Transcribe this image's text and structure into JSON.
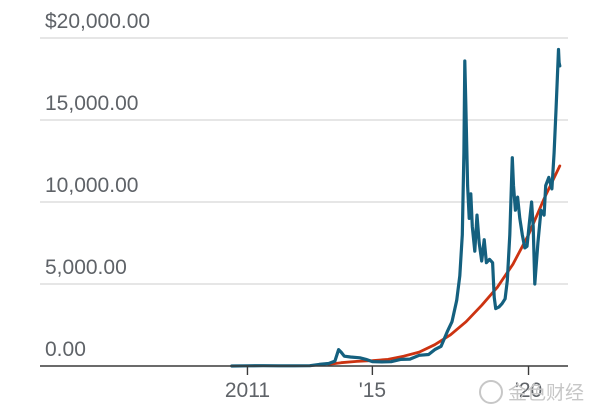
{
  "chart_data": {
    "type": "line",
    "title": "",
    "xlabel": "",
    "ylabel": "",
    "ylim": [
      0,
      20000
    ],
    "xlim": [
      2009,
      2021.2
    ],
    "grid": "horizontal",
    "y_ticks": [
      {
        "value": 0,
        "label": "0.00"
      },
      {
        "value": 5000,
        "label": "5,000.00"
      },
      {
        "value": 10000,
        "label": "10,000.00"
      },
      {
        "value": 15000,
        "label": "15,000.00"
      },
      {
        "value": 20000,
        "label": "$20,000.00"
      }
    ],
    "x_ticks": [
      {
        "value": 2011,
        "label": "2011"
      },
      {
        "value": 2015,
        "label": "'15"
      },
      {
        "value": 2020,
        "label": "'20"
      }
    ],
    "series": [
      {
        "color": "#14607f",
        "points": [
          [
            2010.5,
            0
          ],
          [
            2011.0,
            10
          ],
          [
            2011.5,
            20
          ],
          [
            2012.0,
            10
          ],
          [
            2012.5,
            15
          ],
          [
            2013.0,
            20
          ],
          [
            2013.3,
            100
          ],
          [
            2013.6,
            150
          ],
          [
            2013.8,
            300
          ],
          [
            2013.92,
            1000
          ],
          [
            2014.0,
            850
          ],
          [
            2014.1,
            600
          ],
          [
            2014.3,
            550
          ],
          [
            2014.6,
            500
          ],
          [
            2014.8,
            400
          ],
          [
            2015.0,
            270
          ],
          [
            2015.3,
            250
          ],
          [
            2015.6,
            260
          ],
          [
            2015.9,
            400
          ],
          [
            2016.2,
            420
          ],
          [
            2016.5,
            650
          ],
          [
            2016.8,
            700
          ],
          [
            2017.0,
            1000
          ],
          [
            2017.2,
            1200
          ],
          [
            2017.4,
            2100
          ],
          [
            2017.55,
            2700
          ],
          [
            2017.7,
            4000
          ],
          [
            2017.8,
            5500
          ],
          [
            2017.88,
            8000
          ],
          [
            2017.93,
            13000
          ],
          [
            2017.96,
            18600
          ],
          [
            2017.99,
            16000
          ],
          [
            2018.02,
            13500
          ],
          [
            2018.05,
            11000
          ],
          [
            2018.1,
            9000
          ],
          [
            2018.15,
            10500
          ],
          [
            2018.2,
            8500
          ],
          [
            2018.28,
            7000
          ],
          [
            2018.35,
            9200
          ],
          [
            2018.42,
            7500
          ],
          [
            2018.5,
            6400
          ],
          [
            2018.58,
            7700
          ],
          [
            2018.65,
            6300
          ],
          [
            2018.75,
            6500
          ],
          [
            2018.85,
            6300
          ],
          [
            2018.9,
            4200
          ],
          [
            2018.95,
            3500
          ],
          [
            2019.05,
            3600
          ],
          [
            2019.15,
            3800
          ],
          [
            2019.25,
            4100
          ],
          [
            2019.32,
            5200
          ],
          [
            2019.4,
            8000
          ],
          [
            2019.48,
            12700
          ],
          [
            2019.52,
            11000
          ],
          [
            2019.58,
            9500
          ],
          [
            2019.65,
            10300
          ],
          [
            2019.72,
            9000
          ],
          [
            2019.8,
            8000
          ],
          [
            2019.88,
            7200
          ],
          [
            2019.95,
            7300
          ],
          [
            2020.03,
            8800
          ],
          [
            2020.1,
            10000
          ],
          [
            2020.15,
            8500
          ],
          [
            2020.2,
            5000
          ],
          [
            2020.3,
            7500
          ],
          [
            2020.4,
            9500
          ],
          [
            2020.5,
            9200
          ],
          [
            2020.55,
            11000
          ],
          [
            2020.65,
            11500
          ],
          [
            2020.75,
            10800
          ],
          [
            2020.82,
            13000
          ],
          [
            2020.88,
            15600
          ],
          [
            2020.92,
            17500
          ],
          [
            2020.96,
            19300
          ],
          [
            2020.98,
            18500
          ],
          [
            2021.0,
            18300
          ]
        ]
      },
      {
        "color": "#cc3311",
        "points": [
          [
            2013.6,
            100
          ],
          [
            2014.0,
            200
          ],
          [
            2014.5,
            280
          ],
          [
            2015.0,
            330
          ],
          [
            2015.5,
            400
          ],
          [
            2016.0,
            600
          ],
          [
            2016.5,
            850
          ],
          [
            2017.0,
            1300
          ],
          [
            2017.5,
            1900
          ],
          [
            2018.0,
            2700
          ],
          [
            2018.5,
            3700
          ],
          [
            2019.0,
            4800
          ],
          [
            2019.5,
            6200
          ],
          [
            2020.0,
            8000
          ],
          [
            2020.5,
            10200
          ],
          [
            2021.0,
            12200
          ]
        ]
      }
    ]
  },
  "watermark": {
    "text": "金色财经"
  }
}
